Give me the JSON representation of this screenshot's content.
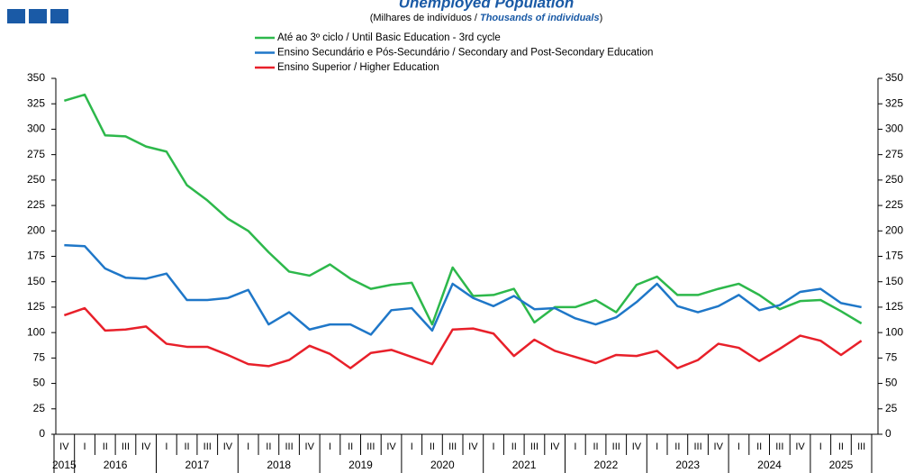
{
  "chart_data": {
    "type": "line",
    "title": "Unemployed Population",
    "subtitle": [
      "(Milhares de indivíduos / ",
      "Thousands of individuals",
      ")"
    ],
    "categories": [
      "IV",
      "I",
      "II",
      "III",
      "IV",
      "I",
      "II",
      "III",
      "IV",
      "I",
      "II",
      "III",
      "IV",
      "I",
      "II",
      "III",
      "IV",
      "I",
      "II",
      "III",
      "IV",
      "I",
      "II",
      "III",
      "IV",
      "I",
      "II",
      "III",
      "IV",
      "I",
      "II",
      "III",
      "IV",
      "I",
      "II",
      "III",
      "IV",
      "I",
      "II",
      "III"
    ],
    "years": [
      "2015",
      "2016",
      null,
      null,
      null,
      "2017",
      null,
      null,
      null,
      "2018",
      null,
      null,
      null,
      "2019",
      null,
      null,
      null,
      "2020",
      null,
      null,
      null,
      "2021",
      null,
      null,
      null,
      "2022",
      null,
      null,
      null,
      "2023",
      null,
      null,
      null,
      "2024",
      null,
      null,
      null,
      "2025",
      null,
      null
    ],
    "series": [
      {
        "name": "Até ao 3º ciclo / Until Basic Education - 3rd cycle",
        "color": "#2db84b",
        "values": [
          328,
          334,
          294,
          293,
          283,
          278,
          245,
          230,
          212,
          200,
          179,
          160,
          156,
          167,
          153,
          143,
          147,
          149,
          108,
          164,
          136,
          137,
          143,
          110,
          125,
          125,
          132,
          120,
          147,
          155,
          137,
          137,
          143,
          148,
          137,
          123,
          131,
          132,
          121,
          109
        ]
      },
      {
        "name": "Ensino Secundário e Pós-Secundário / Secondary and Post-Secondary Education",
        "color": "#1f77c8",
        "values": [
          186,
          185,
          163,
          154,
          153,
          158,
          132,
          132,
          134,
          142,
          108,
          120,
          103,
          108,
          108,
          98,
          122,
          124,
          102,
          148,
          134,
          126,
          136,
          123,
          124,
          114,
          108,
          115,
          130,
          148,
          126,
          120,
          126,
          137,
          122,
          127,
          140,
          143,
          129,
          125
        ]
      },
      {
        "name": "Ensino Superior / Higher Education",
        "color": "#e8202a",
        "values": [
          117,
          124,
          102,
          103,
          106,
          89,
          86,
          86,
          78,
          69,
          67,
          73,
          87,
          79,
          65,
          80,
          83,
          76,
          69,
          103,
          104,
          99,
          77,
          93,
          82,
          76,
          70,
          78,
          77,
          82,
          65,
          73,
          89,
          85,
          72,
          84,
          97,
          92,
          78,
          92
        ]
      }
    ],
    "ylim": [
      0,
      350
    ],
    "yticks": [
      0,
      25,
      50,
      75,
      100,
      125,
      150,
      175,
      200,
      225,
      250,
      275,
      300,
      325,
      350
    ]
  }
}
